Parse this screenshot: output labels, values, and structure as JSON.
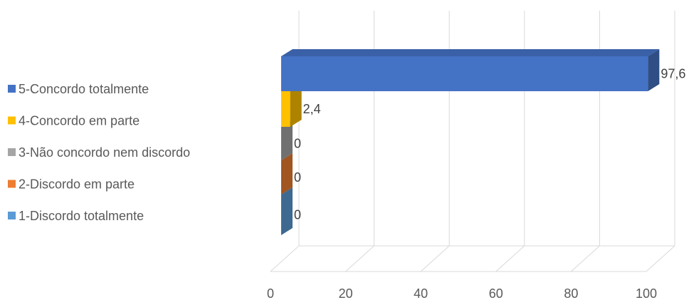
{
  "chart_data": {
    "type": "bar",
    "orientation": "horizontal",
    "three_d": true,
    "categories": [
      "5-Concordo totalmente",
      "4-Concordo em parte",
      "3-Não concordo nem discordo",
      "2-Discordo em parte",
      "1-Discordo totalmente"
    ],
    "values": [
      97.6,
      2.4,
      0,
      0,
      0
    ],
    "data_labels": [
      "97,6",
      "2,4",
      "0",
      "0",
      "0"
    ],
    "colors": [
      "#4472C4",
      "#FFC000",
      "#A5A5A5",
      "#ED7D31",
      "#5B9BD5"
    ],
    "x_ticks": [
      "0",
      "20",
      "40",
      "60",
      "80",
      "100"
    ],
    "xlim": [
      0,
      100
    ],
    "grid": true,
    "legend": "left",
    "title": ""
  }
}
